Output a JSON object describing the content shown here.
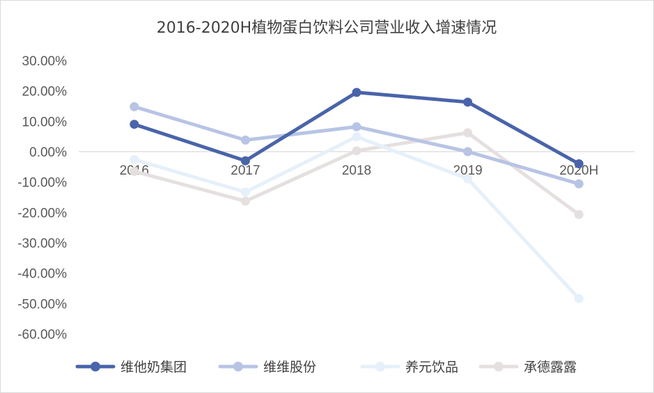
{
  "chart_data": {
    "type": "line",
    "title": "2016-2020H植物蛋白饮料公司营业收入增速情况",
    "xlabel": "",
    "ylabel": "",
    "categories": [
      "2016",
      "2017",
      "2018",
      "2019",
      "2020H"
    ],
    "y_ticks": [
      "30.00%",
      "20.00%",
      "10.00%",
      "0.00%",
      "-10.00%",
      "-20.00%",
      "-30.00%",
      "-40.00%",
      "-50.00%",
      "-60.00%"
    ],
    "ylim": [
      -60,
      30
    ],
    "grid": false,
    "legend_position": "bottom",
    "series": [
      {
        "name": "维他奶集团",
        "color": "#4a64aa",
        "values": [
          9.0,
          -3.0,
          19.5,
          16.3,
          -4.0
        ]
      },
      {
        "name": "维维股份",
        "color": "#b8c4e4",
        "values": [
          14.8,
          3.8,
          8.2,
          0.0,
          -10.6
        ]
      },
      {
        "name": "养元饮品",
        "color": "#e6f0fa",
        "values": [
          -2.6,
          -13.3,
          4.9,
          -8.9,
          -48.4
        ]
      },
      {
        "name": "承德露露",
        "color": "#e5e0df",
        "values": [
          -6.5,
          -16.3,
          0.3,
          6.2,
          -20.7
        ]
      }
    ]
  }
}
